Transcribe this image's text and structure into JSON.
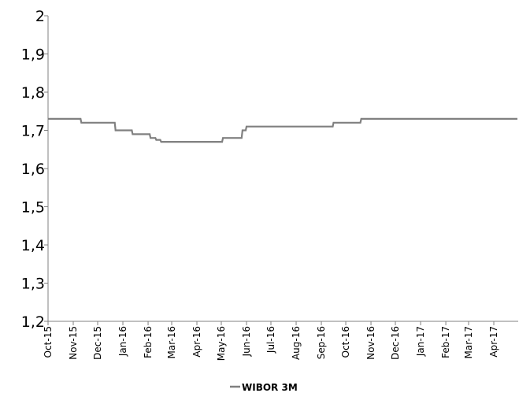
{
  "chart_data": {
    "type": "line",
    "title": "",
    "xlabel": "",
    "ylabel": "",
    "ylim": [
      1.2,
      2.0
    ],
    "yticks": [
      1.2,
      1.3,
      1.4,
      1.5,
      1.6,
      1.7,
      1.8,
      1.9,
      2.0
    ],
    "ytick_labels": [
      "1,2",
      "1,3",
      "1,4",
      "1,5",
      "1,6",
      "1,7",
      "1,8",
      "1,9",
      "2"
    ],
    "categories": [
      "Oct-15",
      "Nov-15",
      "Dec-15",
      "Jan-16",
      "Feb-16",
      "Mar-16",
      "Apr-16",
      "May-16",
      "Jun-16",
      "Jul-16",
      "Aug-16",
      "Sep-16",
      "Oct-16",
      "Nov-16",
      "Dec-16",
      "Jan-17",
      "Feb-17",
      "Mar-17",
      "Apr-17"
    ],
    "grid": false,
    "legend_position": "bottom-center",
    "colors": {
      "series": "#808080",
      "axis": "#808080",
      "text": "#000000"
    },
    "series": [
      {
        "name": "WIBOR 3M",
        "x": [
          "2015-10-01",
          "2015-11-10",
          "2015-11-11",
          "2015-12-22",
          "2015-12-23",
          "2016-01-12",
          "2016-01-13",
          "2016-02-03",
          "2016-02-04",
          "2016-02-10",
          "2016-02-11",
          "2016-02-16",
          "2016-02-17",
          "2016-05-02",
          "2016-05-03",
          "2016-05-26",
          "2016-05-27",
          "2016-05-31",
          "2016-06-01",
          "2016-09-15",
          "2016-09-16",
          "2016-10-19",
          "2016-10-20",
          "2017-04-30"
        ],
        "values": [
          1.73,
          1.73,
          1.72,
          1.72,
          1.7,
          1.7,
          1.69,
          1.69,
          1.68,
          1.68,
          1.675,
          1.675,
          1.67,
          1.67,
          1.68,
          1.68,
          1.7,
          1.7,
          1.71,
          1.71,
          1.72,
          1.72,
          1.73,
          1.73
        ]
      }
    ]
  }
}
